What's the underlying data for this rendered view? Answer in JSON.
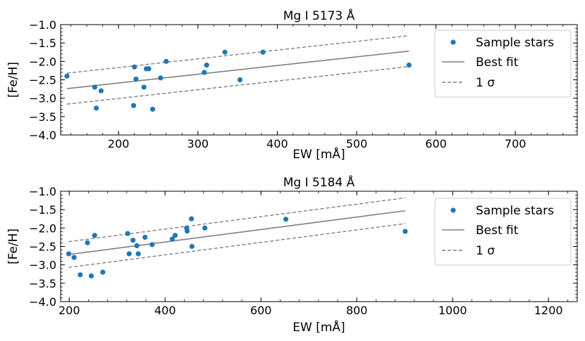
{
  "chart_data": [
    {
      "type": "scatter",
      "title": "Mg I 5173 Å",
      "xlabel": "EW [mÅ]",
      "ylabel": "[Fe/H]",
      "xlim": [
        127,
        778
      ],
      "ylim": [
        -4.0,
        -1.0
      ],
      "xticks": [
        200,
        300,
        400,
        500,
        600,
        700
      ],
      "yticks": [
        -4.0,
        -3.5,
        -3.0,
        -2.5,
        -2.0,
        -1.5,
        -1.0
      ],
      "xtick_labels": [
        "200",
        "300",
        "400",
        "500",
        "600",
        "700"
      ],
      "ytick_labels": [
        "−4.0",
        "−3.5",
        "−3.0",
        "−2.5",
        "−2.0",
        "−1.5",
        "−1.0"
      ],
      "points": [
        {
          "x": 135,
          "y": -2.4
        },
        {
          "x": 170,
          "y": -2.7
        },
        {
          "x": 172,
          "y": -3.27
        },
        {
          "x": 178,
          "y": -2.8
        },
        {
          "x": 219,
          "y": -3.2
        },
        {
          "x": 220,
          "y": -2.15
        },
        {
          "x": 222,
          "y": -2.48
        },
        {
          "x": 232,
          "y": -2.7
        },
        {
          "x": 235,
          "y": -2.2
        },
        {
          "x": 238,
          "y": -2.2
        },
        {
          "x": 243,
          "y": -3.3
        },
        {
          "x": 253,
          "y": -2.45
        },
        {
          "x": 260,
          "y": -2.0
        },
        {
          "x": 308,
          "y": -2.3
        },
        {
          "x": 311,
          "y": -2.1
        },
        {
          "x": 334,
          "y": -1.75
        },
        {
          "x": 353,
          "y": -2.5
        },
        {
          "x": 382,
          "y": -1.75
        },
        {
          "x": 566,
          "y": -2.1
        }
      ],
      "fit": {
        "x": [
          135,
          566
        ],
        "y": [
          -2.74,
          -1.72
        ]
      },
      "sigma": 0.42,
      "colors": {
        "points": "#1f77b4",
        "fit": "#808080",
        "sigma": "#808080"
      },
      "legend": {
        "position": "top-right",
        "entries": [
          "Sample stars",
          "Best fit",
          "1 σ"
        ]
      }
    },
    {
      "type": "scatter",
      "title": "Mg I 5184 Å",
      "xlabel": "EW [mÅ]",
      "ylabel": "[Fe/H]",
      "xlim": [
        182,
        1260
      ],
      "ylim": [
        -4.0,
        -1.0
      ],
      "xticks": [
        200,
        400,
        600,
        800,
        1000,
        1200
      ],
      "yticks": [
        -4.0,
        -3.5,
        -3.0,
        -2.5,
        -2.0,
        -1.5,
        -1.0
      ],
      "xtick_labels": [
        "200",
        "400",
        "600",
        "800",
        "1000",
        "1200"
      ],
      "ytick_labels": [
        "−4.0",
        "−3.5",
        "−3.0",
        "−2.5",
        "−2.0",
        "−1.5",
        "−1.0"
      ],
      "points": [
        {
          "x": 199,
          "y": -2.7
        },
        {
          "x": 210,
          "y": -2.8
        },
        {
          "x": 223,
          "y": -3.27
        },
        {
          "x": 238,
          "y": -2.4
        },
        {
          "x": 246,
          "y": -3.3
        },
        {
          "x": 253,
          "y": -2.2
        },
        {
          "x": 270,
          "y": -3.2
        },
        {
          "x": 322,
          "y": -2.15
        },
        {
          "x": 325,
          "y": -2.7
        },
        {
          "x": 333,
          "y": -2.33
        },
        {
          "x": 341,
          "y": -2.48
        },
        {
          "x": 344,
          "y": -2.7
        },
        {
          "x": 358,
          "y": -2.25
        },
        {
          "x": 373,
          "y": -2.45
        },
        {
          "x": 415,
          "y": -2.3
        },
        {
          "x": 421,
          "y": -2.2
        },
        {
          "x": 445,
          "y": -2.0
        },
        {
          "x": 446,
          "y": -2.08
        },
        {
          "x": 455,
          "y": -1.75
        },
        {
          "x": 456,
          "y": -2.5
        },
        {
          "x": 483,
          "y": -2.0
        },
        {
          "x": 652,
          "y": -1.76
        },
        {
          "x": 901,
          "y": -2.09
        }
      ],
      "fit": {
        "x": [
          199,
          901
        ],
        "y": [
          -2.72,
          -1.53
        ]
      },
      "sigma": 0.35,
      "colors": {
        "points": "#1f77b4",
        "fit": "#808080",
        "sigma": "#808080"
      },
      "legend": {
        "position": "top-right",
        "entries": [
          "Sample stars",
          "Best fit",
          "1 σ"
        ]
      }
    }
  ]
}
